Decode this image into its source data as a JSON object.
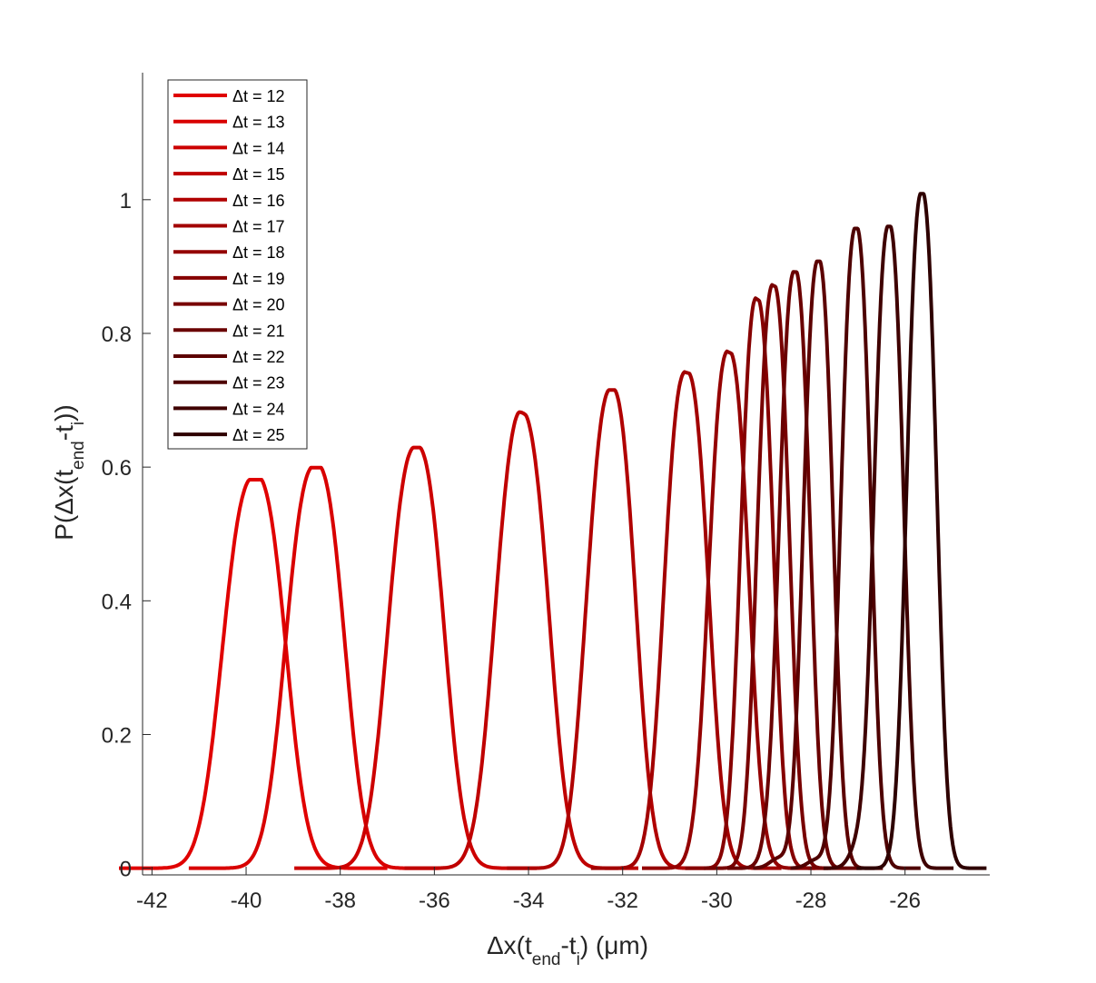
{
  "chart_data": {
    "type": "line",
    "title": "",
    "xlabel": {
      "prefix": "Δx(t",
      "sub1": "end",
      "mid": "-t",
      "sub2": "i",
      "suffix": ") (μm)"
    },
    "ylabel": {
      "prefix": "P(Δx(t",
      "sub1": "end",
      "mid": "-t",
      "sub2": "i",
      "suffix": "))"
    },
    "xlim": [
      -42.2,
      -24.2
    ],
    "ylim": [
      -0.01,
      1.19
    ],
    "xticks": [
      -42,
      -40,
      -38,
      -36,
      -34,
      -32,
      -30,
      -28,
      -26
    ],
    "xtick_labels": [
      "-42",
      "-40",
      "-38",
      "-36",
      "-34",
      "-32",
      "-30",
      "-28",
      "-26"
    ],
    "yticks": [
      0,
      0.2,
      0.4,
      0.6,
      0.8,
      1
    ],
    "ytick_labels": [
      "0",
      "0.2",
      "0.4",
      "0.6",
      "0.8",
      "1"
    ],
    "legend_position": "top-left",
    "series": [
      {
        "name": "Δt = 12",
        "color": "#e00000",
        "center": -39.85,
        "peak": 0.58,
        "width": 0.62,
        "shoulder": 0.1,
        "bump_x": null,
        "bump_h": 0
      },
      {
        "name": "Δt = 13",
        "color": "#d80000",
        "center": -38.55,
        "peak": 0.598,
        "width": 0.58,
        "shoulder": 0.08,
        "bump_x": null,
        "bump_h": 0
      },
      {
        "name": "Δt = 14",
        "color": "#cc0000",
        "center": -36.4,
        "peak": 0.628,
        "width": 0.56,
        "shoulder": 0.05,
        "bump_x": null,
        "bump_h": 0
      },
      {
        "name": "Δt = 15",
        "color": "#bf0000",
        "center": -34.15,
        "peak": 0.665,
        "width": 0.54,
        "shoulder": 0.05,
        "bump_x": -34.2,
        "bump_h": 0.016
      },
      {
        "name": "Δt = 16",
        "color": "#b00000",
        "center": -32.25,
        "peak": 0.714,
        "width": 0.48,
        "shoulder": 0.05,
        "bump_x": -32.9,
        "bump_h": 0.016
      },
      {
        "name": "Δt = 17",
        "color": "#a20000",
        "center": -30.65,
        "peak": 0.738,
        "width": 0.44,
        "shoulder": 0.04,
        "bump_x": -31.0,
        "bump_h": 0.014
      },
      {
        "name": "Δt = 18",
        "color": "#940000",
        "center": -29.75,
        "peak": 0.766,
        "width": 0.4,
        "shoulder": 0.04,
        "bump_x": -30.0,
        "bump_h": 0.012
      },
      {
        "name": "Δt = 19",
        "color": "#860000",
        "center": -29.15,
        "peak": 0.84,
        "width": 0.33,
        "shoulder": 0.04,
        "bump_x": -29.3,
        "bump_h": 0.014
      },
      {
        "name": "Δt = 20",
        "color": "#780000",
        "center": -28.8,
        "peak": 0.866,
        "width": 0.32,
        "shoulder": 0.04,
        "bump_x": -29.1,
        "bump_h": 0.016
      },
      {
        "name": "Δt = 21",
        "color": "#6a0000",
        "center": -28.35,
        "peak": 0.89,
        "width": 0.31,
        "shoulder": 0.04,
        "bump_x": -28.9,
        "bump_h": 0.016
      },
      {
        "name": "Δt = 22",
        "color": "#5c0000",
        "center": -27.85,
        "peak": 0.906,
        "width": 0.3,
        "shoulder": 0.04,
        "bump_x": -28.7,
        "bump_h": 0.014
      },
      {
        "name": "Δt = 23",
        "color": "#4e0000",
        "center": -27.05,
        "peak": 0.955,
        "width": 0.3,
        "shoulder": 0.04,
        "bump_x": -27.9,
        "bump_h": 0.012
      },
      {
        "name": "Δt = 24",
        "color": "#3f0000",
        "center": -26.35,
        "peak": 0.958,
        "width": 0.3,
        "shoulder": 0.04,
        "bump_x": -27.0,
        "bump_h": 0.03
      },
      {
        "name": "Δt = 25",
        "color": "#2e0000",
        "center": -25.65,
        "peak": 1.007,
        "width": 0.3,
        "shoulder": 0.04,
        "bump_x": -28.5,
        "bump_h": 0.008
      }
    ]
  }
}
